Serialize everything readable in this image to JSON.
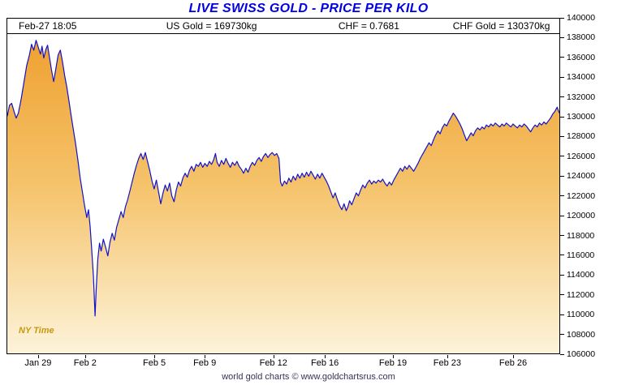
{
  "title": "LIVE SWISS GOLD - PRICE PER KILO",
  "header": {
    "datetime": "Feb-27  18:05",
    "us_gold": "US Gold = 169730kg",
    "chf_rate": "CHF = 0.7681",
    "chf_gold": "CHF Gold = 130370kg"
  },
  "ny_time_label": "NY Time",
  "footer": "world gold charts © www.goldchartsrus.com",
  "colors": {
    "title": "#0000E0",
    "line": "#1212CC",
    "fill_top": "#EE9C28",
    "fill_mid": "#F5C36B",
    "fill_bottom": "#FDF3DA",
    "axis_text": "#000000",
    "ny_time": "#C79810",
    "footer": "#333355"
  },
  "chart_data": {
    "type": "area",
    "title": "LIVE SWISS GOLD - PRICE PER KILO",
    "xlabel": "",
    "ylabel": "",
    "y_min": 106000,
    "y_max": 140000,
    "y_step": 2000,
    "grid": false,
    "legend": false,
    "y_ticks": [
      140000,
      138000,
      136000,
      134000,
      132000,
      130000,
      128000,
      126000,
      124000,
      122000,
      120000,
      118000,
      116000,
      114000,
      112000,
      110000,
      108000,
      106000
    ],
    "x_ticks": [
      {
        "label": "Jan 29",
        "pos": 5.7
      },
      {
        "label": "Feb 2",
        "pos": 14.2
      },
      {
        "label": "Feb 5",
        "pos": 26.7
      },
      {
        "label": "Feb 9",
        "pos": 35.8
      },
      {
        "label": "Feb 12",
        "pos": 48.2
      },
      {
        "label": "Feb 16",
        "pos": 57.5
      },
      {
        "label": "Feb 19",
        "pos": 69.8
      },
      {
        "label": "Feb 23",
        "pos": 79.6
      },
      {
        "label": "Feb 26",
        "pos": 91.5
      }
    ],
    "points": [
      [
        0,
        130100
      ],
      [
        0.4,
        131200
      ],
      [
        0.8,
        131400
      ],
      [
        1.2,
        130600
      ],
      [
        1.6,
        129900
      ],
      [
        2,
        130400
      ],
      [
        2.5,
        131800
      ],
      [
        3,
        133500
      ],
      [
        3.5,
        135200
      ],
      [
        4,
        136300
      ],
      [
        4.4,
        137400
      ],
      [
        4.8,
        136800
      ],
      [
        5.2,
        137800
      ],
      [
        5.6,
        137100
      ],
      [
        6,
        136400
      ],
      [
        6.3,
        137200
      ],
      [
        6.6,
        136000
      ],
      [
        7,
        136900
      ],
      [
        7.3,
        137300
      ],
      [
        7.6,
        136200
      ],
      [
        8,
        134800
      ],
      [
        8.4,
        133600
      ],
      [
        8.8,
        134900
      ],
      [
        9.2,
        136300
      ],
      [
        9.6,
        136800
      ],
      [
        10,
        135600
      ],
      [
        10.4,
        134200
      ],
      [
        10.8,
        133000
      ],
      [
        11.2,
        131500
      ],
      [
        11.6,
        130000
      ],
      [
        12,
        128600
      ],
      [
        12.4,
        127200
      ],
      [
        12.8,
        125600
      ],
      [
        13.2,
        123800
      ],
      [
        13.6,
        122400
      ],
      [
        14,
        121000
      ],
      [
        14.4,
        119800
      ],
      [
        14.7,
        120600
      ],
      [
        15,
        118900
      ],
      [
        15.3,
        116500
      ],
      [
        15.6,
        113800
      ],
      [
        15.9,
        109800
      ],
      [
        16.1,
        112500
      ],
      [
        16.4,
        115600
      ],
      [
        16.7,
        117200
      ],
      [
        17,
        116400
      ],
      [
        17.4,
        117600
      ],
      [
        17.8,
        116800
      ],
      [
        18.2,
        115900
      ],
      [
        18.6,
        117300
      ],
      [
        19,
        118200
      ],
      [
        19.4,
        117500
      ],
      [
        19.8,
        118800
      ],
      [
        20.2,
        119600
      ],
      [
        20.6,
        120400
      ],
      [
        21,
        119800
      ],
      [
        21.4,
        120900
      ],
      [
        21.8,
        121600
      ],
      [
        22.2,
        122500
      ],
      [
        22.6,
        123400
      ],
      [
        23,
        124300
      ],
      [
        23.4,
        125100
      ],
      [
        23.8,
        125800
      ],
      [
        24.2,
        126300
      ],
      [
        24.6,
        125700
      ],
      [
        25,
        126400
      ],
      [
        25.4,
        125500
      ],
      [
        25.8,
        124600
      ],
      [
        26.2,
        123500
      ],
      [
        26.6,
        122700
      ],
      [
        27,
        123600
      ],
      [
        27.4,
        122400
      ],
      [
        27.8,
        121200
      ],
      [
        28.2,
        122300
      ],
      [
        28.6,
        123100
      ],
      [
        29,
        122500
      ],
      [
        29.4,
        123300
      ],
      [
        29.8,
        122000
      ],
      [
        30.2,
        121400
      ],
      [
        30.6,
        122600
      ],
      [
        31,
        123400
      ],
      [
        31.4,
        123000
      ],
      [
        31.8,
        123800
      ],
      [
        32.2,
        124300
      ],
      [
        32.6,
        123900
      ],
      [
        33,
        124600
      ],
      [
        33.4,
        125000
      ],
      [
        33.8,
        124500
      ],
      [
        34.2,
        125200
      ],
      [
        34.6,
        125000
      ],
      [
        35,
        125400
      ],
      [
        35.4,
        124900
      ],
      [
        35.8,
        125300
      ],
      [
        36.2,
        125000
      ],
      [
        36.6,
        125500
      ],
      [
        37,
        125200
      ],
      [
        37.4,
        125700
      ],
      [
        37.7,
        126300
      ],
      [
        38,
        125400
      ],
      [
        38.4,
        125000
      ],
      [
        38.8,
        125600
      ],
      [
        39.2,
        125200
      ],
      [
        39.6,
        125800
      ],
      [
        40,
        125300
      ],
      [
        40.4,
        124900
      ],
      [
        40.8,
        125400
      ],
      [
        41.2,
        125100
      ],
      [
        41.6,
        125500
      ],
      [
        42,
        125000
      ],
      [
        42.4,
        124700
      ],
      [
        42.8,
        124300
      ],
      [
        43.2,
        124800
      ],
      [
        43.6,
        124400
      ],
      [
        44,
        125000
      ],
      [
        44.4,
        125400
      ],
      [
        44.8,
        125100
      ],
      [
        45.2,
        125600
      ],
      [
        45.6,
        125900
      ],
      [
        46,
        125500
      ],
      [
        46.4,
        126000
      ],
      [
        46.8,
        126300
      ],
      [
        47.2,
        125900
      ],
      [
        47.6,
        126200
      ],
      [
        48,
        126400
      ],
      [
        48.4,
        126100
      ],
      [
        48.8,
        126300
      ],
      [
        49.2,
        125800
      ],
      [
        49.5,
        123400
      ],
      [
        49.8,
        123000
      ],
      [
        50.2,
        123500
      ],
      [
        50.6,
        123200
      ],
      [
        51,
        123800
      ],
      [
        51.4,
        123400
      ],
      [
        51.8,
        124000
      ],
      [
        52.2,
        123600
      ],
      [
        52.6,
        124200
      ],
      [
        53,
        123800
      ],
      [
        53.4,
        124300
      ],
      [
        53.8,
        123900
      ],
      [
        54.2,
        124400
      ],
      [
        54.6,
        124000
      ],
      [
        55,
        124500
      ],
      [
        55.4,
        124100
      ],
      [
        55.8,
        123700
      ],
      [
        56.2,
        124200
      ],
      [
        56.6,
        123800
      ],
      [
        57,
        124300
      ],
      [
        57.4,
        123900
      ],
      [
        57.8,
        123500
      ],
      [
        58.2,
        123000
      ],
      [
        58.6,
        122400
      ],
      [
        59,
        121800
      ],
      [
        59.4,
        122300
      ],
      [
        59.8,
        121600
      ],
      [
        60.2,
        121000
      ],
      [
        60.6,
        120600
      ],
      [
        61,
        121200
      ],
      [
        61.4,
        120500
      ],
      [
        61.7,
        120900
      ],
      [
        62,
        121500
      ],
      [
        62.4,
        121100
      ],
      [
        62.8,
        121700
      ],
      [
        63.2,
        122300
      ],
      [
        63.6,
        122000
      ],
      [
        64,
        122600
      ],
      [
        64.4,
        123100
      ],
      [
        64.8,
        122800
      ],
      [
        65.2,
        123300
      ],
      [
        65.6,
        123600
      ],
      [
        66,
        123200
      ],
      [
        66.4,
        123500
      ],
      [
        66.8,
        123300
      ],
      [
        67.2,
        123600
      ],
      [
        67.6,
        123400
      ],
      [
        68,
        123700
      ],
      [
        68.4,
        123300
      ],
      [
        68.8,
        123000
      ],
      [
        69.2,
        123400
      ],
      [
        69.6,
        123100
      ],
      [
        70,
        123600
      ],
      [
        70.4,
        124000
      ],
      [
        70.8,
        124400
      ],
      [
        71.2,
        124800
      ],
      [
        71.6,
        124500
      ],
      [
        72,
        125000
      ],
      [
        72.4,
        124700
      ],
      [
        72.8,
        125100
      ],
      [
        73.2,
        124800
      ],
      [
        73.6,
        124500
      ],
      [
        74,
        124900
      ],
      [
        74.4,
        125300
      ],
      [
        74.8,
        125800
      ],
      [
        75.2,
        126200
      ],
      [
        75.6,
        126600
      ],
      [
        76,
        127000
      ],
      [
        76.4,
        127400
      ],
      [
        76.8,
        127100
      ],
      [
        77.2,
        127700
      ],
      [
        77.6,
        128200
      ],
      [
        78,
        128600
      ],
      [
        78.4,
        128300
      ],
      [
        78.8,
        128900
      ],
      [
        79.2,
        129300
      ],
      [
        79.6,
        129100
      ],
      [
        80,
        129600
      ],
      [
        80.4,
        130000
      ],
      [
        80.8,
        130400
      ],
      [
        81.2,
        130100
      ],
      [
        81.6,
        129700
      ],
      [
        82,
        129300
      ],
      [
        82.4,
        128800
      ],
      [
        82.8,
        128200
      ],
      [
        83.2,
        127600
      ],
      [
        83.6,
        128000
      ],
      [
        84,
        128400
      ],
      [
        84.4,
        128100
      ],
      [
        84.8,
        128600
      ],
      [
        85.2,
        128900
      ],
      [
        85.6,
        128700
      ],
      [
        86,
        129000
      ],
      [
        86.4,
        128800
      ],
      [
        86.8,
        129200
      ],
      [
        87.2,
        129000
      ],
      [
        87.6,
        129300
      ],
      [
        88,
        129100
      ],
      [
        88.4,
        129400
      ],
      [
        88.8,
        129200
      ],
      [
        89.2,
        129000
      ],
      [
        89.6,
        129300
      ],
      [
        90,
        129100
      ],
      [
        90.4,
        129400
      ],
      [
        90.8,
        129200
      ],
      [
        91.2,
        129000
      ],
      [
        91.6,
        129300
      ],
      [
        92,
        129100
      ],
      [
        92.4,
        128900
      ],
      [
        92.8,
        129200
      ],
      [
        93.2,
        129000
      ],
      [
        93.6,
        129300
      ],
      [
        94,
        129100
      ],
      [
        94.4,
        128800
      ],
      [
        94.8,
        128500
      ],
      [
        95.2,
        128900
      ],
      [
        95.6,
        129200
      ],
      [
        96,
        129000
      ],
      [
        96.4,
        129400
      ],
      [
        96.8,
        129200
      ],
      [
        97.2,
        129500
      ],
      [
        97.6,
        129300
      ],
      [
        98,
        129600
      ],
      [
        98.4,
        129900
      ],
      [
        98.8,
        130300
      ],
      [
        99.2,
        130600
      ],
      [
        99.6,
        131000
      ],
      [
        100,
        130400
      ]
    ]
  }
}
